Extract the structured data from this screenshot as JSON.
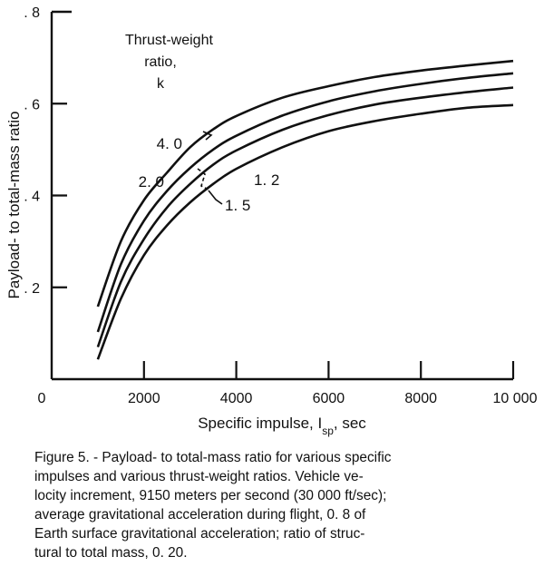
{
  "chart_data": {
    "type": "line",
    "xlabel": "Specific impulse, I",
    "xlabel_sub": "sp",
    "xlabel_tail": ", sec",
    "ylabel": "Payload- to total-mass ratio",
    "x_ticks": [
      {
        "value": 0,
        "label": "0"
      },
      {
        "value": 2000,
        "label": "2000"
      },
      {
        "value": 4000,
        "label": "4000"
      },
      {
        "value": 6000,
        "label": "6000"
      },
      {
        "value": 8000,
        "label": "8000"
      },
      {
        "value": 10000,
        "label": "10 000"
      }
    ],
    "y_ticks": [
      {
        "value": 0.2,
        "label": ". 2"
      },
      {
        "value": 0.4,
        "label": ". 4"
      },
      {
        "value": 0.6,
        "label": ". 6"
      },
      {
        "value": 0.8,
        "label": ". 8"
      }
    ],
    "xlim": [
      0,
      10000
    ],
    "ylim": [
      0,
      0.8
    ],
    "grid": false,
    "legend_title": [
      "Thrust-weight",
      "ratio,",
      "k"
    ],
    "series": [
      {
        "name": "4. 0",
        "x": [
          1000,
          1500,
          2000,
          2500,
          3000,
          3500,
          4000,
          5000,
          6000,
          7000,
          8000,
          9000,
          10000
        ],
        "values": [
          0.158,
          0.3,
          0.39,
          0.45,
          0.505,
          0.544,
          0.573,
          0.613,
          0.638,
          0.658,
          0.672,
          0.683,
          0.693
        ]
      },
      {
        "name": "2. 0",
        "x": [
          1000,
          1500,
          2000,
          2500,
          3000,
          3500,
          4000,
          5000,
          6000,
          7000,
          8000,
          9000,
          10000
        ],
        "values": [
          0.103,
          0.25,
          0.345,
          0.41,
          0.46,
          0.5,
          0.53,
          0.574,
          0.605,
          0.627,
          0.643,
          0.656,
          0.666
        ]
      },
      {
        "name": "1. 5",
        "x": [
          1000,
          1500,
          2000,
          2500,
          3000,
          3500,
          4000,
          5000,
          6000,
          7000,
          8000,
          9000,
          10000
        ],
        "values": [
          0.07,
          0.212,
          0.305,
          0.374,
          0.425,
          0.467,
          0.498,
          0.543,
          0.575,
          0.598,
          0.613,
          0.625,
          0.635
        ]
      },
      {
        "name": "1. 2",
        "x": [
          1000,
          1500,
          2000,
          2500,
          3000,
          3500,
          4000,
          5000,
          6000,
          7000,
          8000,
          9000,
          10000
        ],
        "values": [
          0.043,
          0.175,
          0.27,
          0.335,
          0.385,
          0.425,
          0.458,
          0.505,
          0.54,
          0.562,
          0.578,
          0.591,
          0.597
        ]
      }
    ]
  },
  "caption": "Figure 5.  - Payload- to total-mass ratio for various specific\n   impulses and various thrust-weight ratios.  Vehicle ve-\n   locity increment, 9150 meters per second (30 000 ft/sec);\n   average gravitational acceleration during flight, 0. 8 of\n   Earth surface gravitational acceleration;  ratio of struc-\n   tural to total mass, 0. 20."
}
